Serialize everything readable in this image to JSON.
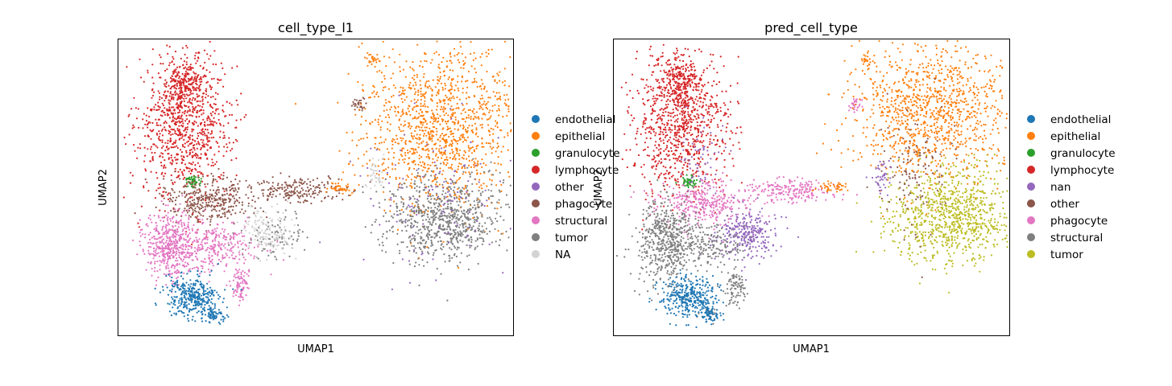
{
  "chart_data": [
    {
      "type": "scatter",
      "title": "cell_type_l1",
      "xlabel": "UMAP1",
      "ylabel": "UMAP2",
      "grid": false,
      "legend_position": "right",
      "categories": [
        {
          "name": "endothelial",
          "color": "#1f77b4"
        },
        {
          "name": "epithelial",
          "color": "#ff7f0e"
        },
        {
          "name": "granulocyte",
          "color": "#2ca02c"
        },
        {
          "name": "lymphocyte",
          "color": "#d62728"
        },
        {
          "name": "other",
          "color": "#9467bd"
        },
        {
          "name": "phagocyte",
          "color": "#8c564b"
        },
        {
          "name": "structural",
          "color": "#e377c2"
        },
        {
          "name": "tumor",
          "color": "#7f7f7f"
        },
        {
          "name": "NA",
          "color": "#d3d3d3"
        }
      ],
      "clusters": [
        {
          "category": "lymphocyte",
          "cx": 0.17,
          "cy": 0.71,
          "sx": 0.06,
          "sy": 0.12,
          "n": 900
        },
        {
          "category": "lymphocyte",
          "cx": 0.17,
          "cy": 0.85,
          "sx": 0.025,
          "sy": 0.04,
          "n": 200
        },
        {
          "category": "granulocyte",
          "cx": 0.19,
          "cy": 0.52,
          "sx": 0.012,
          "sy": 0.01,
          "n": 50
        },
        {
          "category": "phagocyte",
          "cx": 0.23,
          "cy": 0.46,
          "sx": 0.06,
          "sy": 0.04,
          "n": 350
        },
        {
          "category": "phagocyte",
          "cx": 0.45,
          "cy": 0.49,
          "sx": 0.06,
          "sy": 0.02,
          "n": 200
        },
        {
          "category": "phagocyte",
          "cx": 0.61,
          "cy": 0.78,
          "sx": 0.008,
          "sy": 0.012,
          "n": 30
        },
        {
          "category": "epithelial",
          "cx": 0.56,
          "cy": 0.5,
          "sx": 0.02,
          "sy": 0.01,
          "n": 40
        },
        {
          "category": "epithelial",
          "cx": 0.64,
          "cy": 0.93,
          "sx": 0.008,
          "sy": 0.012,
          "n": 25
        },
        {
          "category": "epithelial",
          "cx": 0.82,
          "cy": 0.71,
          "sx": 0.1,
          "sy": 0.14,
          "n": 1300
        },
        {
          "category": "tumor",
          "cx": 0.83,
          "cy": 0.39,
          "sx": 0.08,
          "sy": 0.07,
          "n": 800
        },
        {
          "category": "tumor",
          "cx": 0.39,
          "cy": 0.33,
          "sx": 0.04,
          "sy": 0.04,
          "n": 90
        },
        {
          "category": "other",
          "cx": 0.79,
          "cy": 0.47,
          "sx": 0.1,
          "sy": 0.12,
          "n": 120
        },
        {
          "category": "structural",
          "cx": 0.13,
          "cy": 0.3,
          "sx": 0.03,
          "sy": 0.06,
          "n": 450
        },
        {
          "category": "structural",
          "cx": 0.24,
          "cy": 0.3,
          "sx": 0.06,
          "sy": 0.04,
          "n": 300
        },
        {
          "category": "structural",
          "cx": 0.31,
          "cy": 0.17,
          "sx": 0.012,
          "sy": 0.03,
          "n": 90
        },
        {
          "category": "NA",
          "cx": 0.38,
          "cy": 0.35,
          "sx": 0.03,
          "sy": 0.04,
          "n": 150
        },
        {
          "category": "NA",
          "cx": 0.65,
          "cy": 0.55,
          "sx": 0.012,
          "sy": 0.03,
          "n": 40
        },
        {
          "category": "endothelial",
          "cx": 0.19,
          "cy": 0.13,
          "sx": 0.035,
          "sy": 0.035,
          "n": 350
        },
        {
          "category": "endothelial",
          "cx": 0.24,
          "cy": 0.07,
          "sx": 0.015,
          "sy": 0.015,
          "n": 60
        }
      ]
    },
    {
      "type": "scatter",
      "title": "pred_cell_type",
      "xlabel": "UMAP1",
      "ylabel": "UMAP2",
      "grid": false,
      "legend_position": "right",
      "categories": [
        {
          "name": "endothelial",
          "color": "#1f77b4"
        },
        {
          "name": "epithelial",
          "color": "#ff7f0e"
        },
        {
          "name": "granulocyte",
          "color": "#2ca02c"
        },
        {
          "name": "lymphocyte",
          "color": "#d62728"
        },
        {
          "name": "nan",
          "color": "#9467bd"
        },
        {
          "name": "other",
          "color": "#8c564b"
        },
        {
          "name": "phagocyte",
          "color": "#e377c2"
        },
        {
          "name": "structural",
          "color": "#7f7f7f"
        },
        {
          "name": "tumor",
          "color": "#bcbd22"
        }
      ],
      "clusters": [
        {
          "category": "lymphocyte",
          "cx": 0.17,
          "cy": 0.71,
          "sx": 0.06,
          "sy": 0.12,
          "n": 900
        },
        {
          "category": "lymphocyte",
          "cx": 0.17,
          "cy": 0.85,
          "sx": 0.025,
          "sy": 0.04,
          "n": 200
        },
        {
          "category": "granulocyte",
          "cx": 0.19,
          "cy": 0.52,
          "sx": 0.012,
          "sy": 0.01,
          "n": 50
        },
        {
          "category": "phagocyte",
          "cx": 0.23,
          "cy": 0.45,
          "sx": 0.06,
          "sy": 0.04,
          "n": 350
        },
        {
          "category": "phagocyte",
          "cx": 0.45,
          "cy": 0.49,
          "sx": 0.06,
          "sy": 0.02,
          "n": 200
        },
        {
          "category": "phagocyte",
          "cx": 0.61,
          "cy": 0.78,
          "sx": 0.008,
          "sy": 0.012,
          "n": 30
        },
        {
          "category": "epithelial",
          "cx": 0.56,
          "cy": 0.5,
          "sx": 0.02,
          "sy": 0.01,
          "n": 40
        },
        {
          "category": "epithelial",
          "cx": 0.64,
          "cy": 0.93,
          "sx": 0.008,
          "sy": 0.012,
          "n": 25
        },
        {
          "category": "epithelial",
          "cx": 0.8,
          "cy": 0.75,
          "sx": 0.1,
          "sy": 0.12,
          "n": 1100
        },
        {
          "category": "tumor",
          "cx": 0.86,
          "cy": 0.4,
          "sx": 0.08,
          "sy": 0.08,
          "n": 900
        },
        {
          "category": "other",
          "cx": 0.76,
          "cy": 0.56,
          "sx": 0.05,
          "sy": 0.1,
          "n": 120
        },
        {
          "category": "nan",
          "cx": 0.34,
          "cy": 0.34,
          "sx": 0.04,
          "sy": 0.04,
          "n": 280
        },
        {
          "category": "nan",
          "cx": 0.68,
          "cy": 0.54,
          "sx": 0.012,
          "sy": 0.04,
          "n": 40
        },
        {
          "category": "nan",
          "cx": 0.22,
          "cy": 0.61,
          "sx": 0.03,
          "sy": 0.06,
          "n": 60
        },
        {
          "category": "structural",
          "cx": 0.13,
          "cy": 0.32,
          "sx": 0.035,
          "sy": 0.07,
          "n": 500
        },
        {
          "category": "structural",
          "cx": 0.24,
          "cy": 0.3,
          "sx": 0.05,
          "sy": 0.04,
          "n": 200
        },
        {
          "category": "structural",
          "cx": 0.31,
          "cy": 0.17,
          "sx": 0.012,
          "sy": 0.03,
          "n": 90
        },
        {
          "category": "structural",
          "cx": 0.24,
          "cy": 0.07,
          "sx": 0.01,
          "sy": 0.01,
          "n": 15
        },
        {
          "category": "endothelial",
          "cx": 0.19,
          "cy": 0.13,
          "sx": 0.035,
          "sy": 0.035,
          "n": 350
        },
        {
          "category": "endothelial",
          "cx": 0.24,
          "cy": 0.07,
          "sx": 0.015,
          "sy": 0.015,
          "n": 60
        }
      ]
    }
  ]
}
